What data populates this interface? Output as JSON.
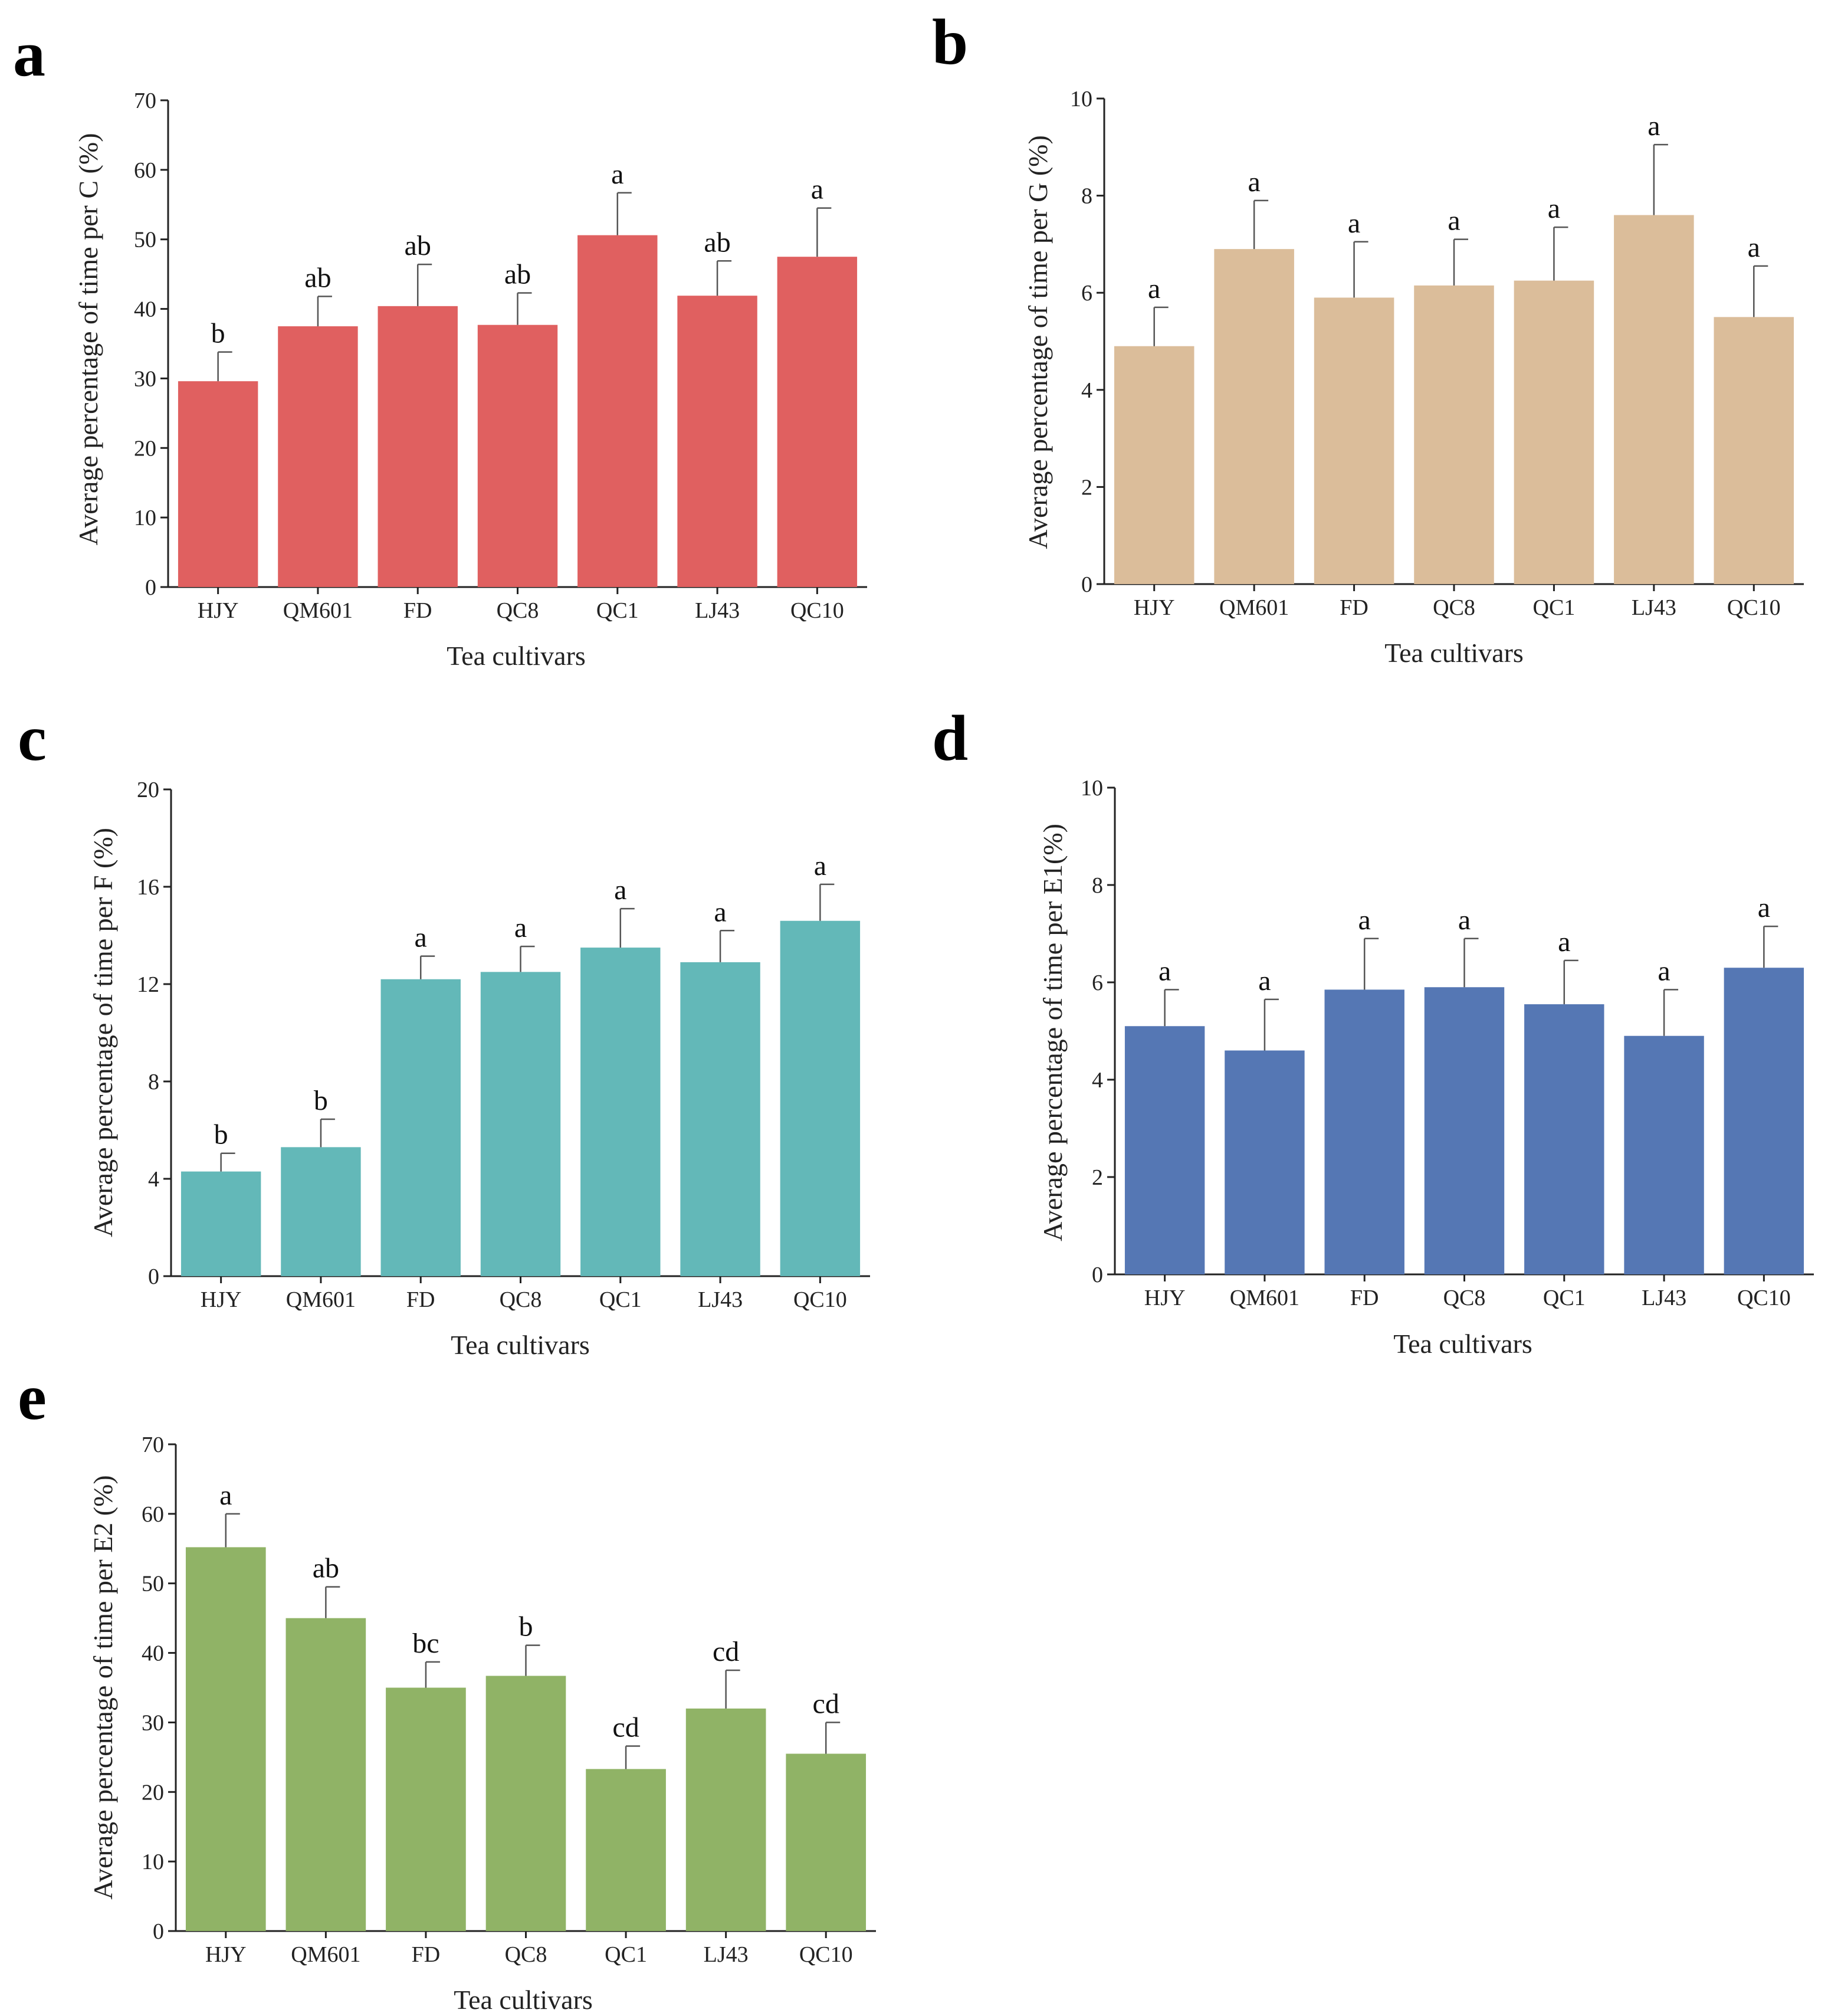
{
  "chart_data": [
    {
      "panel": "a",
      "type": "bar",
      "categories": [
        "HJY",
        "QM601",
        "FD",
        "QC8",
        "QC1",
        "LJ43",
        "QC10"
      ],
      "values": [
        29.6,
        37.5,
        40.4,
        37.7,
        50.6,
        41.9,
        47.5
      ],
      "errors": [
        4.2,
        4.3,
        6.0,
        4.6,
        6.1,
        5.0,
        7.0
      ],
      "sig": [
        "b",
        "ab",
        "ab",
        "ab",
        "a",
        "ab",
        "a"
      ],
      "yticks": [
        0,
        10,
        20,
        30,
        40,
        50,
        60,
        70
      ],
      "ylim": [
        0,
        70
      ],
      "xlabel": "Tea cultivars",
      "ylabel": "Average percentage of time per C (%)",
      "color": "#e06060"
    },
    {
      "panel": "b",
      "type": "bar",
      "categories": [
        "HJY",
        "QM601",
        "FD",
        "QC8",
        "QC1",
        "LJ43",
        "QC10"
      ],
      "values": [
        4.9,
        6.9,
        5.9,
        6.15,
        6.25,
        7.6,
        5.5
      ],
      "errors": [
        0.8,
        1.0,
        1.15,
        0.95,
        1.1,
        1.45,
        1.05
      ],
      "sig": [
        "a",
        "a",
        "a",
        "a",
        "a",
        "a",
        "a"
      ],
      "yticks": [
        0,
        2,
        4,
        6,
        8,
        10
      ],
      "ylim": [
        0,
        10
      ],
      "xlabel": "Tea cultivars",
      "ylabel": "Average percentage of time per G (%)",
      "color": "#dbbd9a"
    },
    {
      "panel": "c",
      "type": "bar",
      "categories": [
        "HJY",
        "QM601",
        "FD",
        "QC8",
        "QC1",
        "LJ43",
        "QC10"
      ],
      "values": [
        4.3,
        5.3,
        12.2,
        12.5,
        13.5,
        12.9,
        14.6
      ],
      "errors": [
        0.75,
        1.15,
        0.95,
        1.05,
        1.6,
        1.3,
        1.5
      ],
      "sig": [
        "b",
        "b",
        "a",
        "a",
        "a",
        "a",
        "a"
      ],
      "yticks": [
        0,
        4,
        8,
        12,
        16,
        20
      ],
      "ylim": [
        0,
        20
      ],
      "xlabel": "Tea cultivars",
      "ylabel": "Average percentage of time per F (%)",
      "color": "#63b8b8"
    },
    {
      "panel": "d",
      "type": "bar",
      "categories": [
        "HJY",
        "QM601",
        "FD",
        "QC8",
        "QC1",
        "LJ43",
        "QC10"
      ],
      "values": [
        5.1,
        4.6,
        5.85,
        5.9,
        5.55,
        4.9,
        6.3
      ],
      "errors": [
        0.75,
        1.05,
        1.05,
        1.0,
        0.9,
        0.95,
        0.85
      ],
      "sig": [
        "a",
        "a",
        "a",
        "a",
        "a",
        "a",
        "a"
      ],
      "yticks": [
        0,
        2,
        4,
        6,
        8,
        10
      ],
      "ylim": [
        0,
        10
      ],
      "xlabel": "Tea cultivars",
      "ylabel": "Average percentage of time per E1(%)",
      "color": "#5577b4"
    },
    {
      "panel": "e",
      "type": "bar",
      "categories": [
        "HJY",
        "QM601",
        "FD",
        "QC8",
        "QC1",
        "LJ43",
        "QC10"
      ],
      "values": [
        55.2,
        45.0,
        35.0,
        36.7,
        23.3,
        32.0,
        25.5
      ],
      "errors": [
        4.8,
        4.5,
        3.7,
        4.4,
        3.3,
        5.5,
        4.5
      ],
      "sig": [
        "a",
        "ab",
        "bc",
        "b",
        "cd",
        "cd",
        "cd"
      ],
      "yticks": [
        0,
        10,
        20,
        30,
        40,
        50,
        60,
        70
      ],
      "ylim": [
        0,
        70
      ],
      "xlabel": "Tea cultivars",
      "ylabel": "Average percentage of time per E2 (%)",
      "color": "#90b366"
    }
  ]
}
